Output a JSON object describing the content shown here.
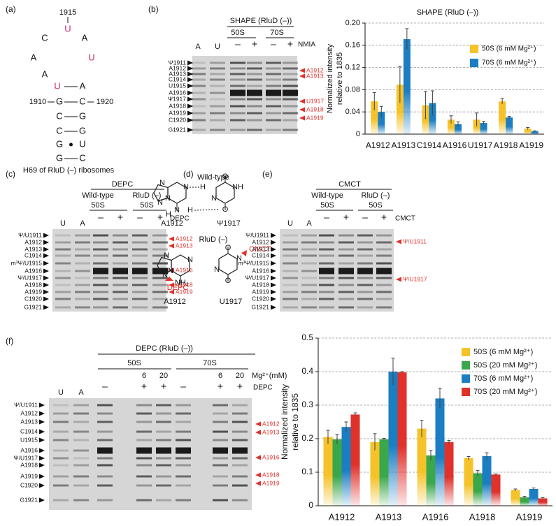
{
  "figure": {
    "a": {
      "panel": "(a)",
      "position_label": "1915",
      "nucleotides": [
        "U",
        "C",
        "A",
        "A",
        "U",
        "A",
        "U",
        "A",
        "G",
        "C",
        "C",
        "G",
        "C",
        "G",
        "G",
        "U",
        "G",
        "C"
      ],
      "numbers": [
        "1910",
        "1920"
      ],
      "caption": "H69 of RluD (–) ribosomes"
    },
    "b": {
      "panel": "(b)",
      "gel": {
        "title": "SHAPE (RluD (–))",
        "groups": [
          "50S",
          "70S"
        ],
        "lanes": [
          "A",
          "U",
          "–",
          "+",
          "–",
          "+"
        ],
        "reagent": "NMIA",
        "left_labels": [
          "Ψ1911",
          "A1912",
          "A1913",
          "C1914",
          "U1915",
          "A1916",
          "Ψ1917",
          "A1918",
          "A1919",
          "C1920",
          "G1921"
        ],
        "right_labels": [
          "A1912",
          "A1913",
          "U1917",
          "A1918",
          "A1919"
        ]
      }
    },
    "c": {
      "panel": "(c)",
      "gel": {
        "title": "DEPC",
        "strains": [
          "Wild-type",
          "RluD (–)"
        ],
        "groups": [
          "50S",
          "50S"
        ],
        "lanes": [
          "U",
          "A",
          "–",
          "+",
          "–",
          "+"
        ],
        "reagent": "DEPC",
        "left_labels": [
          "Ψ/U1911",
          "A1912",
          "A1913",
          "C1914",
          "m³Ψ/U1915",
          "A1916",
          "Ψ/U1917",
          "A1918",
          "A1919",
          "C1920",
          "G1921"
        ],
        "right_labels": [
          "A1912",
          "A1913",
          "A1916",
          "A1918",
          "A1919"
        ]
      }
    },
    "d": {
      "panel": "(d)",
      "wild_type": {
        "title": "Wild-type",
        "adenine": "A1912",
        "pyrimidine": "Ψ1917",
        "adenine_atoms": [
          "N",
          "N",
          "N",
          "N",
          "N",
          "H",
          "H"
        ],
        "pyrimidine_atoms": [
          "O",
          "NH",
          "N",
          "H",
          "O"
        ]
      },
      "mutant": {
        "title": "RluD (–)",
        "adenine": "A1912",
        "pyrimidine": "U1917",
        "adenine_atoms": [
          "N",
          "N",
          "N",
          "N",
          "NH₂"
        ],
        "pyrimidine_atoms": [
          "O",
          "N",
          "N",
          "O"
        ],
        "adenine_reagent": "DEPC",
        "pyrimidine_reagent": "CMCT"
      }
    },
    "e": {
      "panel": "(e)",
      "gel": {
        "title": "CMCT",
        "strains": [
          "Wild-type",
          "RluD (–)"
        ],
        "groups": [
          "50S",
          "50S"
        ],
        "lanes": [
          "U",
          "A",
          "–",
          "+",
          "–",
          "+"
        ],
        "reagent": "CMCT",
        "left_labels": [
          "Ψ/U1911",
          "A1912",
          "A1913",
          "C1914",
          "m³Ψ/U1915",
          "A1916",
          "Ψ/U1917",
          "A1918",
          "A1919",
          "C1920",
          "G1921"
        ],
        "right_labels": [
          "Ψ/U1911",
          "Ψ/U1917"
        ]
      }
    },
    "f": {
      "panel": "(f)",
      "gel": {
        "title": "DEPC (RluD (–))",
        "groups": [
          "50S",
          "70S"
        ],
        "concentrations": [
          "6",
          "20",
          "6",
          "20"
        ],
        "concentration_label": "Mg²⁺(mM)",
        "lanes": [
          "U",
          "A",
          "–",
          "+",
          "+",
          "–",
          "+",
          "+"
        ],
        "reagent": "DEPC",
        "left_labels": [
          "Ψ/U1911",
          "A1912",
          "A1913",
          "C1914",
          "U1915",
          "A1916",
          "Ψ/U1917",
          "A1918",
          "A1919",
          "C1920",
          "G1921"
        ],
        "right_labels": [
          "A1912",
          "A1913",
          "A1916",
          "A1918",
          "A1919"
        ]
      }
    }
  },
  "chart_data": [
    {
      "type": "bar",
      "title": "SHAPE (RluD (–))",
      "ylabel": [
        "Normalized intensity",
        "relative to 1835"
      ],
      "categories": [
        "A1912",
        "A1913",
        "C1914",
        "A1916",
        "U1917",
        "A1918",
        "A1919"
      ],
      "series": [
        {
          "name": "50S (6 mM Mg²⁺)",
          "color": "#f5c22a",
          "values": [
            0.059,
            0.089,
            0.052,
            0.026,
            0.026,
            0.059,
            0.01
          ],
          "errors": [
            0.016,
            0.033,
            0.025,
            0.007,
            0.012,
            0.005,
            0.002
          ]
        },
        {
          "name": "70S (6 mM Mg²⁺)",
          "color": "#1b7ec2",
          "values": [
            0.04,
            0.171,
            0.056,
            0.018,
            0.02,
            0.03,
            0.005
          ],
          "errors": [
            0.01,
            0.019,
            0.022,
            0.004,
            0.003,
            0.002,
            0.001
          ]
        }
      ],
      "ylim": [
        0,
        0.2
      ],
      "yticks": [
        0,
        0.04,
        0.08,
        0.12,
        0.16,
        {
          "value": 0.2,
          "label": "0.20"
        }
      ],
      "grid": true,
      "legend": "upper-right"
    },
    {
      "type": "bar",
      "ylabel": [
        "Normalized intensity",
        "relative to 1835"
      ],
      "categories": [
        "A1912",
        "A1913",
        "A1916",
        "A1918",
        "A1919"
      ],
      "series": [
        {
          "name": "50S (6 mM Mg²⁺)",
          "color": "#f5c22a",
          "values": [
            0.205,
            0.19,
            0.23,
            0.142,
            0.047
          ],
          "errors": [
            0.02,
            0.025,
            0.025,
            0.005,
            0.003
          ]
        },
        {
          "name": "50S (20 mM Mg²⁺)",
          "color": "#3aa74a",
          "values": [
            0.198,
            0.198,
            0.15,
            0.097,
            0.025
          ],
          "errors": [
            0.015,
            0.003,
            0.015,
            0.008,
            0.003
          ]
        },
        {
          "name": "70S (6 mM Mg²⁺)",
          "color": "#1b7ec2",
          "values": [
            0.235,
            0.4,
            0.32,
            0.148,
            0.05
          ],
          "errors": [
            0.015,
            0.04,
            0.03,
            0.01,
            0.003
          ]
        },
        {
          "name": "70S (20 mM Mg²⁺)",
          "color": "#e0312b",
          "values": [
            0.272,
            0.398,
            0.19,
            0.093,
            0.022
          ],
          "errors": [
            0.005,
            0.002,
            0.005,
            0.002,
            0.002
          ]
        }
      ],
      "ylim": [
        0,
        0.5
      ],
      "yticks": [
        0,
        0.1,
        0.2,
        0.3,
        0.4,
        0.5
      ],
      "grid": true,
      "legend": "upper-right"
    }
  ]
}
